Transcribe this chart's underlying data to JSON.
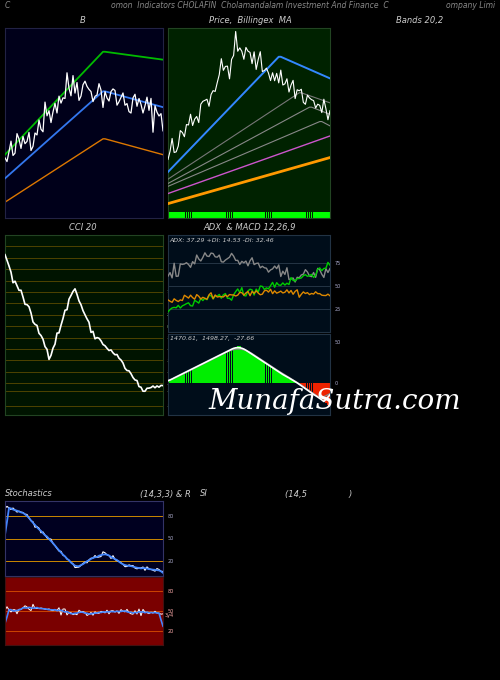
{
  "bg_color": "#000000",
  "header_left": "C",
  "header_center": "omon  Indicators CHOLAFIN  Cholamandalam Investment And Finance  C",
  "header_right": "ompany Limi",
  "panel_labels": {
    "p1": "B",
    "p2": "Price,  Billingex  MA",
    "p3": "Bands 20,2",
    "p4": "CCI 20",
    "p5": "ADX  & MACD 12,26,9",
    "p6": "Stochastics",
    "p6b": "(14,3,3) & R",
    "p7": "SI",
    "p7b": "(14,5                )"
  },
  "watermark": "MunafaSutra.com",
  "panel1_bg": "#00001a",
  "panel2_bg": "#002200",
  "panel3_bg": "#000000",
  "panel4_bg": "#001400",
  "panel5a_bg": "#000d1a",
  "panel5b_bg": "#000d1a",
  "panel6_bg": "#000020",
  "panel7_bg": "#7a0000",
  "adx_label": "ADX: 37.29 +DI: 14.53 -DI: 32.46",
  "macd_label": "1470.61,  1498.27,  -27.66"
}
